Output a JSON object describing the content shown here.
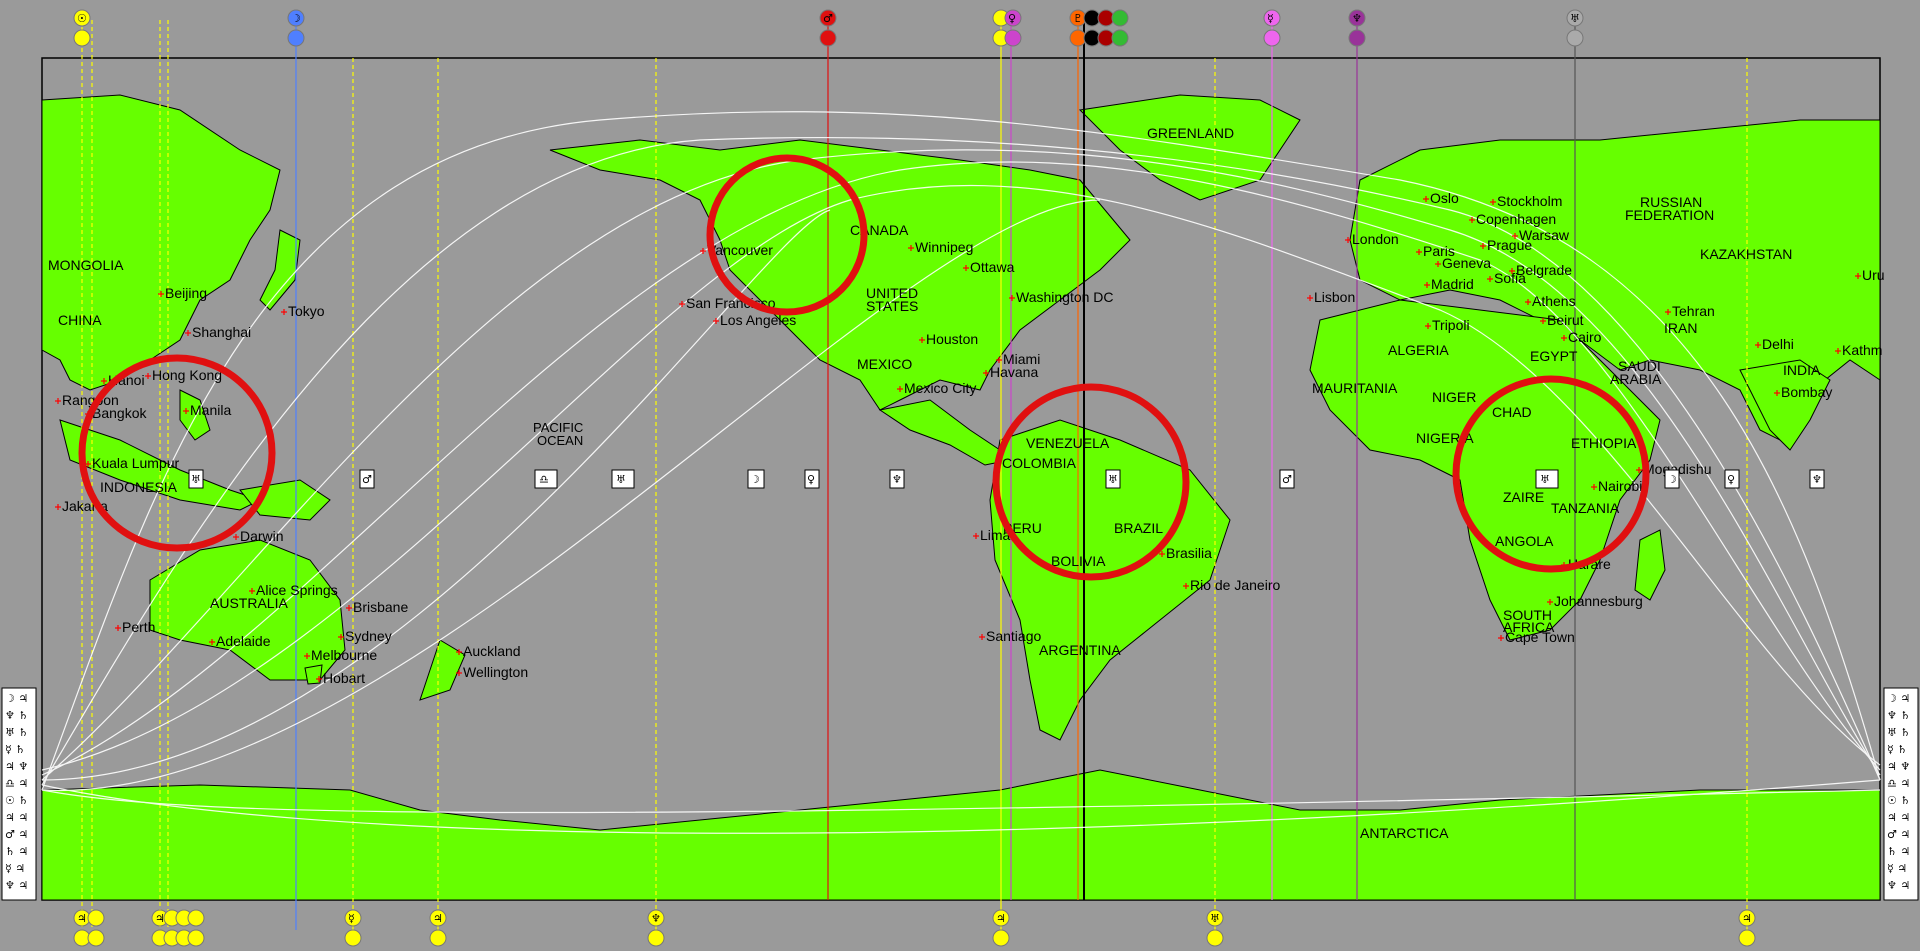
{
  "colors": {
    "background": "#9a9a9a",
    "land": "#66ff00",
    "coast": "#000000",
    "city_marker": "#ff0000",
    "highlight_circle": "#e01010",
    "yellow": "#ffff00",
    "blue": "#4f7fff",
    "red": "#e01010",
    "purple": "#cc44cc",
    "violet": "#993399",
    "gray": "#aaaaaa",
    "orbit": "#ffffff"
  },
  "regions": {
    "mongolia": "MONGOLIA",
    "china": "CHINA",
    "indonesia": "INDONESIA",
    "australia": "AUSTRALIA",
    "pacific_ocean_1": "PACIFIC",
    "pacific_ocean_2": "OCEAN",
    "canada": "CANADA",
    "united_states_1": "UNITED",
    "united_states_2": "STATES",
    "mexico": "MEXICO",
    "venezuela": "VENEZUELA",
    "colombia": "COLOMBIA",
    "peru": "PERU",
    "brazil": "BRAZIL",
    "bolivia": "BOLIVIA",
    "argentina": "ARGENTINA",
    "greenland": "GREENLAND",
    "russian_1": "RUSSIAN",
    "russian_2": "FEDERATION",
    "kazakhstan": "KAZAKHSTAN",
    "iran": "IRAN",
    "algeria": "ALGERIA",
    "egypt": "EGYPT",
    "saudi_1": "SAUDI",
    "saudi_2": "ARABIA",
    "india": "INDIA",
    "mauritania": "MAURITANIA",
    "niger": "NIGER",
    "nigeria": "NIGERIA",
    "chad": "CHAD",
    "ethiopia": "ETHIOPIA",
    "zaire": "ZAIRE",
    "tanzania": "TANZANIA",
    "angola": "ANGOLA",
    "south_africa_1": "SOUTH",
    "south_africa_2": "AFRICA",
    "antarctica": "ANTARCTICA"
  },
  "cities": {
    "beijing": "Beijing",
    "tokyo": "Tokyo",
    "shanghai": "Shanghai",
    "hanoi": "Hanoi",
    "hong_kong": "Hong Kong",
    "rangoon": "Rangoon",
    "bangkok": "Bangkok",
    "manila": "Manila",
    "kuala_lumpur": "Kuala Lumpur",
    "jakarta": "Jakarta",
    "darwin": "Darwin",
    "alice_springs": "Alice Springs",
    "brisbane": "Brisbane",
    "perth": "Perth",
    "adelaide": "Adelaide",
    "sydney": "Sydney",
    "melbourne": "Melbourne",
    "hobart": "Hobart",
    "auckland": "Auckland",
    "wellington": "Wellington",
    "vancouver": "Vancouver",
    "san_francisco": "San Francisco",
    "los_angeles": "Los Angeles",
    "winnipeg": "Winnipeg",
    "ottawa": "Ottawa",
    "washington": "Washington DC",
    "houston": "Houston",
    "miami": "Miami",
    "havana": "Havana",
    "mexico_city": "Mexico City",
    "lima": "Lima",
    "brasilia": "Brasilia",
    "rio": "Rio de Janeiro",
    "santiago": "Santiago",
    "oslo": "Oslo",
    "stockholm": "Stockholm",
    "copenhagen": "Copenhagen",
    "london": "London",
    "warsaw": "Warsaw",
    "paris": "Paris",
    "prague": "Prague",
    "geneva": "Geneva",
    "belgrade": "Belgrade",
    "madrid": "Madrid",
    "sofia": "Sofia",
    "lisbon": "Lisbon",
    "athens": "Athens",
    "tripoli": "Tripoli",
    "beirut": "Beirut",
    "cairo": "Cairo",
    "tehran": "Tehran",
    "delhi": "Delhi",
    "kathmandu": "Kathm",
    "bombay": "Bombay",
    "urumqi": "Uru",
    "mogadishu": "Mogadishu",
    "nairobi": "Nairobi",
    "harare": "Harare",
    "johannesburg": "Johannesburg",
    "cape_town": "Cape Town"
  },
  "bottom_glyphs": {
    "g1": "♃",
    "g2": "♃",
    "g3": "☿",
    "g4": "♃",
    "g5": "♆",
    "g6": "♃",
    "g7": "♅",
    "g8": "♃",
    "g9": "☽",
    "g10": "♃"
  },
  "top_glyphs": {
    "sun": "☉",
    "moon": "☽",
    "mars": "♂",
    "venus_m": "♀",
    "pluto": "♇",
    "uranus": "♅",
    "mercury": "☿",
    "jupiter": "♃",
    "saturn": "♄",
    "neptune": "♆"
  },
  "midline_glyphs": {
    "m1": "♅",
    "m2": "♂",
    "m3": "♎",
    "m4": "♅",
    "m5": "☽",
    "m6": "♀",
    "m7": "♆",
    "m8": "♅",
    "m9": "♂",
    "m10": "♅",
    "m11": "☽",
    "m12": "♀",
    "m13": "♆"
  },
  "side_panel": {
    "rows": [
      "☽ ♃",
      "♆ ♄",
      "♅ ♄",
      "☿ ♄",
      "♃ ♆",
      "♎ ♃",
      "☉ ♄",
      "♃ ♃",
      "♂ ♃",
      "♄ ♃",
      "☿ ♃",
      "♆ ♃"
    ]
  }
}
